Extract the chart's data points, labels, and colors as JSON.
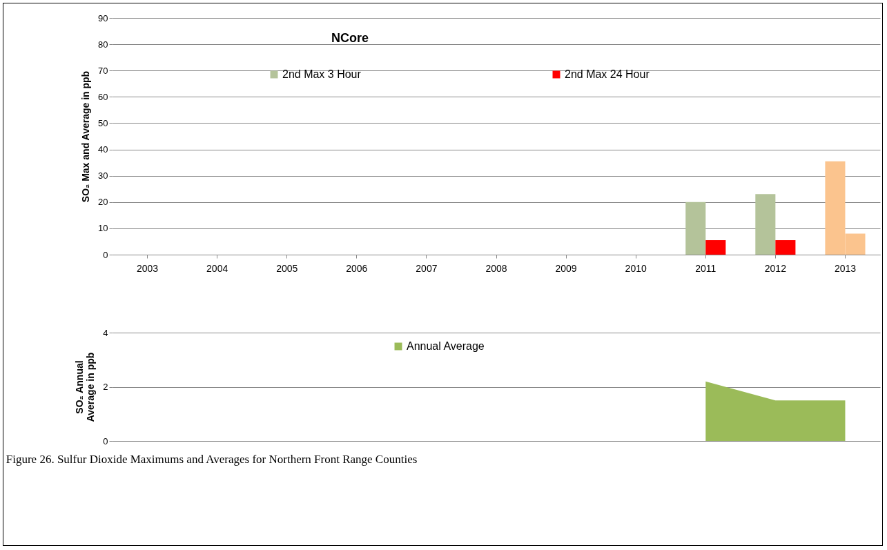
{
  "chart_data": [
    {
      "type": "bar",
      "title": "NCore",
      "ylabel": "SO₂ Max and Average in ppb",
      "categories": [
        "2003",
        "2004",
        "2005",
        "2006",
        "2007",
        "2008",
        "2009",
        "2010",
        "2011",
        "2012",
        "2013"
      ],
      "series": [
        {
          "name": "2nd Max 3 Hour",
          "color": "#b4c39a",
          "colors": [
            "#b4c39a",
            "#b4c39a",
            "#b4c39a",
            "#b4c39a",
            "#b4c39a",
            "#b4c39a",
            "#b4c39a",
            "#b4c39a",
            "#b4c39a",
            "#b4c39a",
            "#fbc48e"
          ],
          "values": [
            null,
            null,
            null,
            null,
            null,
            null,
            null,
            null,
            20,
            23,
            35.5
          ]
        },
        {
          "name": "2nd Max 24 Hour",
          "color": "#ff0000",
          "colors": [
            "#ff0000",
            "#ff0000",
            "#ff0000",
            "#ff0000",
            "#ff0000",
            "#ff0000",
            "#ff0000",
            "#ff0000",
            "#ff0000",
            "#ff0000",
            "#fbc48e"
          ],
          "values": [
            null,
            null,
            null,
            null,
            null,
            null,
            null,
            null,
            5.5,
            5.5,
            8
          ]
        }
      ],
      "ylim": [
        0,
        90
      ],
      "yticks": [
        0,
        10,
        20,
        30,
        40,
        50,
        60,
        70,
        80,
        90
      ],
      "grid": "y",
      "legend": "top"
    },
    {
      "type": "area",
      "ylabel": "SO₂ Annual Average in ppb",
      "categories": [
        null,
        null,
        null,
        null,
        null,
        null,
        null,
        null,
        null,
        null,
        null
      ],
      "series": [
        {
          "name": "Annual Average",
          "color": "#9bbb59",
          "values": [
            null,
            null,
            null,
            null,
            null,
            null,
            null,
            null,
            2.2,
            1.5,
            1.5
          ]
        }
      ],
      "ylim": [
        0,
        4
      ],
      "yticks": [
        0,
        2,
        4
      ],
      "grid": "y",
      "legend": "top",
      "tick_labels": "y",
      "annotations": [
        "Figure 26.     Sulfur Dioxide Maximums and Averages for Northern Front Range Counties"
      ]
    }
  ]
}
